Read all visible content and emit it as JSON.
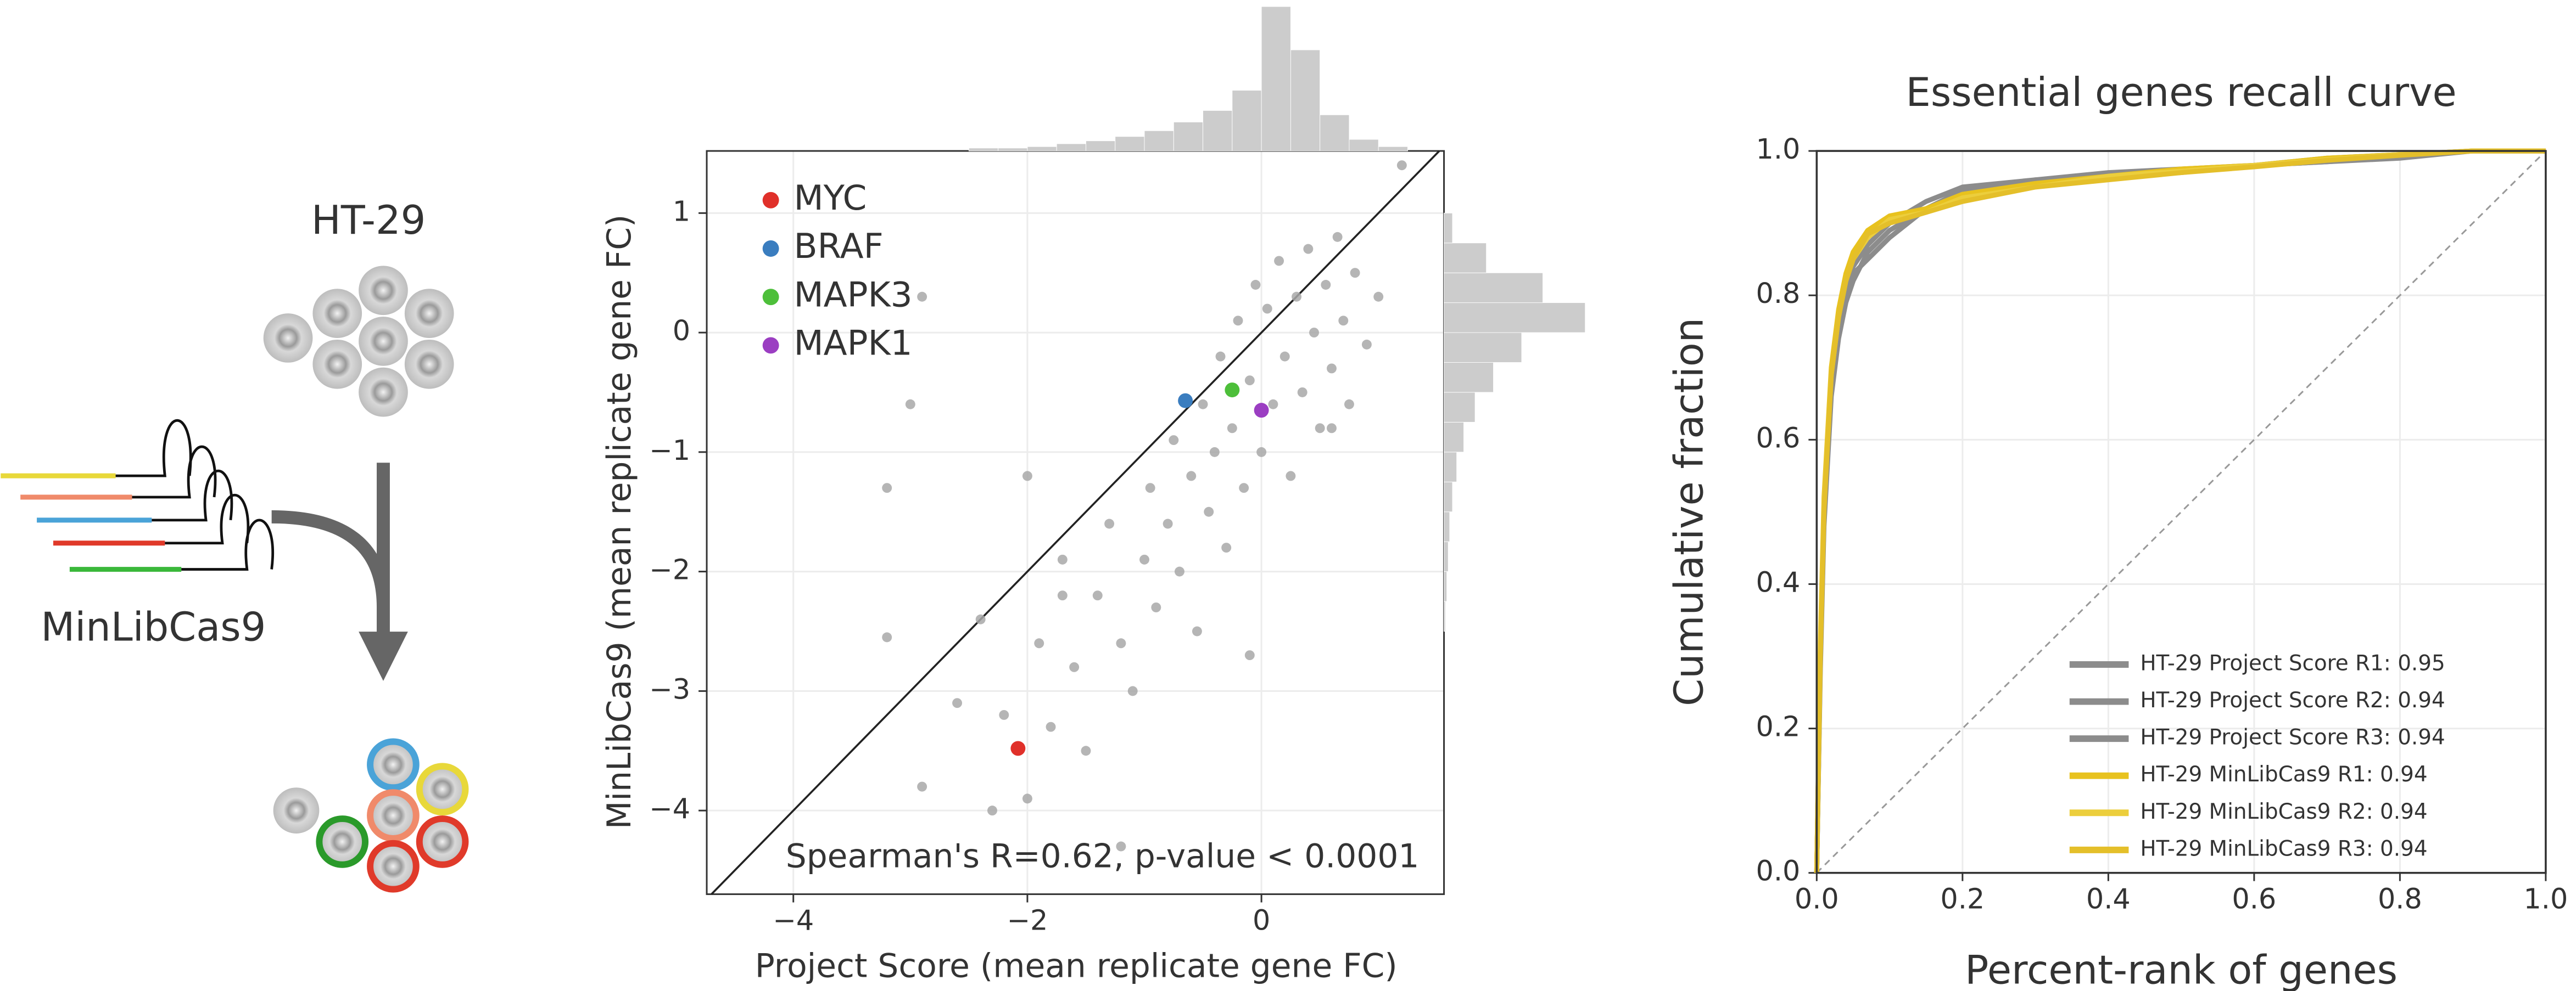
{
  "diagram": {
    "cell_line": "HT-29",
    "library": "MinLibCas9"
  },
  "chart_data": [
    {
      "type": "scatter",
      "xlabel": "Project Score (mean replicate gene FC)",
      "ylabel": "MinLibCas9 (mean replicate gene FC)",
      "annotation": "Spearman's R=0.62, p-value < 0.0001",
      "xlim": [
        -4.74,
        1.56
      ],
      "ylim": [
        -4.7,
        1.52
      ],
      "xticks": [
        {
          "value": -4,
          "label": "−4"
        },
        {
          "value": -2,
          "label": "−2"
        },
        0
      ],
      "yticks": [
        {
          "value": -4,
          "label": "−4"
        },
        {
          "value": -3,
          "label": "−3"
        },
        {
          "value": -2,
          "label": "−2"
        },
        {
          "value": -1,
          "label": "−1"
        },
        0,
        1
      ],
      "grid": true,
      "legend": "upper left",
      "series": [
        {
          "color": "#a8a8a8",
          "x": [
            -3.2,
            -2.9,
            -2.6,
            -2.4,
            -2.3,
            -2.2,
            -2.0,
            -1.9,
            -1.8,
            -1.7,
            -1.6,
            -1.5,
            -1.4,
            -1.3,
            -1.2,
            -1.1,
            -1.0,
            -0.95,
            -0.9,
            -0.8,
            -0.75,
            -0.7,
            -0.6,
            -0.55,
            -0.5,
            -0.45,
            -0.4,
            -0.35,
            -0.3,
            -0.25,
            -0.2,
            -0.15,
            -0.1,
            -0.05,
            0,
            0.05,
            0.1,
            0.15,
            0.2,
            0.25,
            0.3,
            0.35,
            0.4,
            0.45,
            0.5,
            0.55,
            0.6,
            0.65,
            0.7,
            0.75,
            0.8,
            0.9,
            1.0,
            1.2,
            -2.9,
            -3.0,
            -3.2,
            -2.0,
            -1.7,
            -1.2,
            -0.1,
            0.6
          ],
          "y": [
            -2.55,
            -3.8,
            -3.1,
            -2.4,
            -4.0,
            -3.2,
            -3.9,
            -2.6,
            -3.3,
            -1.9,
            -2.8,
            -3.5,
            -2.2,
            -1.6,
            -2.6,
            -3.0,
            -1.9,
            -1.3,
            -2.3,
            -1.6,
            -0.9,
            -2.0,
            -1.2,
            -2.5,
            -0.6,
            -1.5,
            -1.0,
            -0.2,
            -1.8,
            -0.8,
            0.1,
            -1.3,
            -0.4,
            0.4,
            -1.0,
            0.2,
            -0.6,
            0.6,
            -0.2,
            -1.2,
            0.3,
            -0.5,
            0.7,
            0.0,
            -0.8,
            0.4,
            -0.3,
            0.8,
            0.1,
            -0.6,
            0.5,
            -0.1,
            0.3,
            1.4,
            0.3,
            -0.6,
            -1.3,
            -1.2,
            -2.2,
            -4.3,
            -2.7,
            -0.8
          ]
        },
        {
          "name": "MYC",
          "color": "#e0302a",
          "x": [
            -2.08
          ],
          "y": [
            -3.48
          ]
        },
        {
          "name": "BRAF",
          "color": "#3a7dbf",
          "x": [
            -0.65
          ],
          "y": [
            -0.57
          ]
        },
        {
          "name": "MAPK3",
          "color": "#4dbf3a",
          "x": [
            -0.25
          ],
          "y": [
            -0.48
          ]
        },
        {
          "name": "MAPK1",
          "color": "#9b3ec2",
          "x": [
            0
          ],
          "y": [
            -0.65
          ]
        }
      ],
      "x_hist": {
        "bins": [
          -2.5,
          -2.25,
          -2.0,
          -1.75,
          -1.5,
          -1.25,
          -1.0,
          -0.75,
          -0.5,
          -0.25,
          0,
          0.25,
          0.5,
          0.75,
          1.0,
          1.25
        ],
        "counts": [
          2,
          2,
          3,
          5,
          7,
          10,
          14,
          20,
          28,
          42,
          100,
          70,
          25,
          8,
          3
        ],
        "color": "#cccccc"
      },
      "y_hist": {
        "bins": [
          -2.5,
          -2.25,
          -2.0,
          -1.75,
          -1.5,
          -1.25,
          -1.0,
          -0.75,
          -0.5,
          -0.25,
          0,
          0.25,
          0.5,
          0.75,
          1.0
        ],
        "counts": [
          1,
          2,
          3,
          4,
          6,
          9,
          14,
          22,
          35,
          55,
          100,
          70,
          30,
          6
        ],
        "color": "#cccccc"
      }
    },
    {
      "type": "line",
      "title": "Essential genes recall curve",
      "xlabel": "Percent-rank of genes",
      "ylabel": "Cumulative fraction",
      "xlim": [
        0,
        1
      ],
      "ylim": [
        0,
        1
      ],
      "xticks": [
        {
          "value": 0,
          "label": "0.0"
        },
        0.2,
        0.4,
        0.6,
        0.8,
        {
          "value": 1,
          "label": "1.0"
        }
      ],
      "yticks": [
        {
          "value": 0,
          "label": "0.0"
        },
        0.2,
        0.4,
        0.6,
        0.8,
        {
          "value": 1,
          "label": "1.0"
        }
      ],
      "grid": true,
      "legend": "lower right",
      "x": [
        0,
        0.005,
        0.01,
        0.02,
        0.03,
        0.04,
        0.05,
        0.07,
        0.1,
        0.15,
        0.2,
        0.3,
        0.4,
        0.5,
        0.6,
        0.7,
        0.8,
        0.9,
        1.0
      ],
      "series": [
        {
          "name": "HT-29 Project Score R1: 0.95",
          "color": "#8c8c8c",
          "values": [
            0,
            0.3,
            0.5,
            0.68,
            0.76,
            0.81,
            0.84,
            0.87,
            0.9,
            0.93,
            0.95,
            0.96,
            0.97,
            0.975,
            0.98,
            0.99,
            0.995,
            1,
            1
          ]
        },
        {
          "name": "HT-29 Project Score R2: 0.94",
          "color": "#8c8c8c",
          "values": [
            0,
            0.28,
            0.48,
            0.66,
            0.74,
            0.79,
            0.82,
            0.86,
            0.89,
            0.92,
            0.94,
            0.96,
            0.965,
            0.97,
            0.98,
            0.985,
            0.99,
            1,
            1
          ]
        },
        {
          "name": "HT-29 Project Score R3: 0.94",
          "color": "#8c8c8c",
          "values": [
            0,
            0.29,
            0.49,
            0.67,
            0.75,
            0.8,
            0.83,
            0.85,
            0.88,
            0.92,
            0.945,
            0.955,
            0.965,
            0.972,
            0.98,
            0.985,
            0.992,
            1,
            1
          ]
        },
        {
          "name": "HT-29 MinLibCas9 R1: 0.94",
          "color": "#e8c21e",
          "values": [
            0,
            0.32,
            0.52,
            0.7,
            0.78,
            0.83,
            0.86,
            0.89,
            0.91,
            0.92,
            0.94,
            0.955,
            0.965,
            0.975,
            0.98,
            0.99,
            0.995,
            1,
            1
          ]
        },
        {
          "name": "HT-29 MinLibCas9 R2: 0.94",
          "color": "#ecce3c",
          "values": [
            0,
            0.31,
            0.51,
            0.69,
            0.77,
            0.82,
            0.85,
            0.88,
            0.905,
            0.915,
            0.935,
            0.95,
            0.965,
            0.972,
            0.98,
            0.988,
            0.995,
            1,
            1
          ]
        },
        {
          "name": "HT-29  MinLibCas9 R3: 0.94",
          "color": "#e4bf2a",
          "values": [
            0,
            0.3,
            0.5,
            0.69,
            0.77,
            0.82,
            0.85,
            0.885,
            0.9,
            0.915,
            0.93,
            0.95,
            0.96,
            0.97,
            0.978,
            0.987,
            0.994,
            1,
            1
          ]
        }
      ]
    }
  ]
}
